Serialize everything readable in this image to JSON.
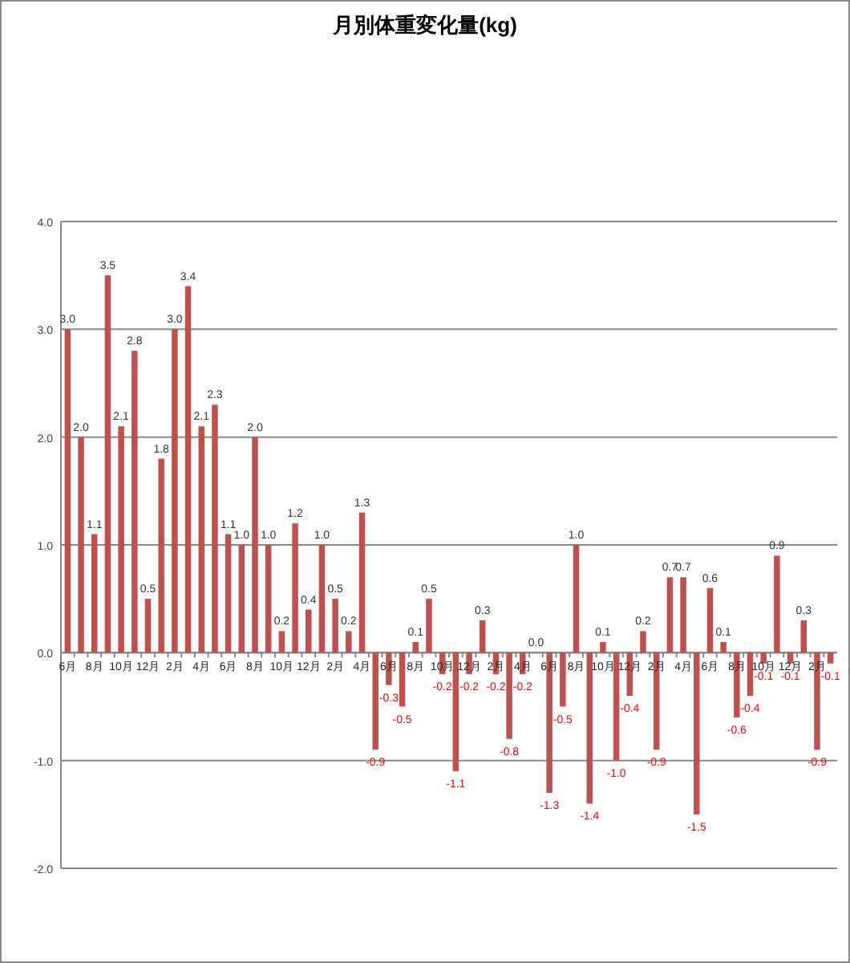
{
  "chart_data": {
    "type": "bar",
    "title": "月別体重変化量(kg)",
    "categories": [
      "6月",
      null,
      "8月",
      null,
      "10月",
      null,
      "12月",
      null,
      "2月",
      null,
      "4月",
      null,
      "6月",
      null,
      "8月",
      null,
      "10月",
      null,
      "12月",
      null,
      "2月",
      null,
      "4月",
      null,
      "6月",
      null,
      "8月",
      null,
      "10月",
      null,
      "12月",
      null,
      "2月",
      null,
      "4月",
      null,
      "6月",
      null,
      "8月",
      null,
      "10月",
      null,
      "12月",
      null,
      "2月",
      null,
      "4月",
      null,
      "6月",
      null,
      "8月",
      null,
      "10月",
      null,
      "12月",
      null,
      "2月",
      null
    ],
    "values": [
      3.0,
      2.0,
      1.1,
      3.5,
      2.1,
      2.8,
      0.5,
      1.8,
      3.0,
      3.4,
      2.1,
      2.3,
      1.1,
      1.0,
      2.0,
      1.0,
      0.2,
      1.2,
      0.4,
      1.0,
      0.5,
      0.2,
      1.3,
      -0.9,
      -0.3,
      -0.5,
      0.1,
      0.5,
      -0.2,
      -1.1,
      -0.2,
      0.3,
      -0.2,
      -0.8,
      -0.2,
      0.0,
      -1.3,
      -0.5,
      1.0,
      -1.4,
      0.1,
      -1.0,
      -0.4,
      0.2,
      -0.9,
      0.7,
      0.7,
      -1.5,
      0.6,
      0.1,
      -0.6,
      -0.4,
      -0.1,
      0.9,
      -0.1,
      0.3,
      -0.9,
      -0.1
    ],
    "value_labels": [
      "3.0",
      "2.0",
      "1.1",
      "3.5",
      "2.1",
      "2.8",
      "0.5",
      "1.8",
      "3.0",
      "3.4",
      "2.1",
      "2.3",
      "1.1",
      "1.0",
      "2.0",
      "1.0",
      "0.2",
      "1.2",
      "0.4",
      "1.0",
      "0.5",
      "0.2",
      "1.3",
      "-0.9",
      "-0.3",
      "-0.5",
      "0.1",
      "0.5",
      "-0.2",
      "-1.1",
      "-0.2",
      "0.3",
      "-0.2",
      "-0.8",
      "-0.2",
      "0.0",
      "-1.3",
      "-0.5",
      "1.0",
      "-1.4",
      "0.1",
      "-1.0",
      "-0.4",
      "0.2",
      "-0.9",
      "0.7",
      "0.7",
      "-1.5",
      "0.6",
      "0.1",
      "-0.6",
      "-0.4",
      "-0.1",
      "0.9",
      "-0.1",
      "0.3",
      "-0.9",
      "-0.1"
    ],
    "color": "#c0504d",
    "ylim": [
      -2,
      4
    ],
    "yticks": [
      {
        "value": -2,
        "label": "-2.0"
      },
      {
        "value": -1,
        "label": "-1.0"
      },
      {
        "value": 0,
        "label": "0.0"
      },
      {
        "value": 1,
        "label": "1.0"
      },
      {
        "value": 2,
        "label": "2.0"
      },
      {
        "value": 3,
        "label": "3.0"
      },
      {
        "value": 4,
        "label": "4.0"
      }
    ],
    "grid": "y"
  }
}
